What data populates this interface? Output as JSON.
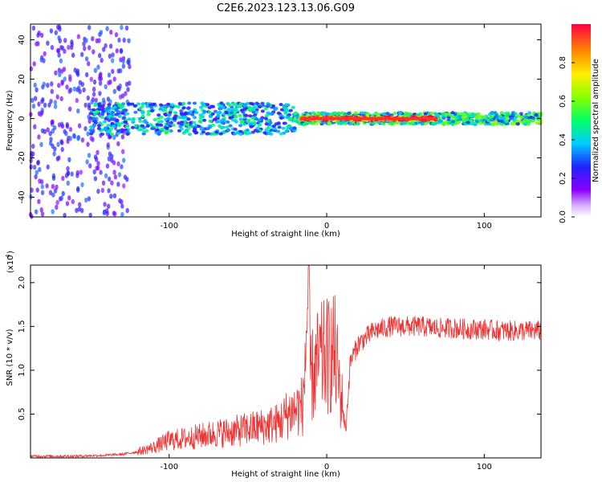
{
  "title": "C2E6.2023.123.13.06.G09",
  "chart_data": [
    {
      "type": "heatmap",
      "name": "spectrogram",
      "xlabel": "Height of straight line (km)",
      "ylabel": "Frequency (Hz)",
      "xlim": [
        -188,
        136
      ],
      "ylim": [
        -50,
        48
      ],
      "xticks": [
        -100,
        0,
        100
      ],
      "yticks": [
        -40,
        -20,
        0,
        20,
        40
      ],
      "xtick_labels": [
        "-100",
        "0",
        "100"
      ],
      "ytick_labels": [
        "-40",
        "-20",
        "0",
        "20",
        "40"
      ],
      "colorbar": {
        "label": "Normalized spectral amplitude",
        "range": [
          0,
          1
        ],
        "ticks": [
          0.0,
          0.2,
          0.4,
          0.6,
          0.8
        ],
        "tick_labels": [
          "0.0",
          "0.2",
          "0.4",
          "0.6",
          "0.8"
        ]
      },
      "bands": [
        {
          "x": [
            -188,
            -125
          ],
          "freq_center": 0,
          "freq_halfwidth": 50,
          "amplitude": 0.25,
          "description_level": "scattered"
        },
        {
          "x": [
            -150,
            -20
          ],
          "freq_center": 0,
          "freq_halfwidth": 8,
          "amplitude": 0.4
        },
        {
          "x": [
            -20,
            136
          ],
          "freq_center": 0,
          "freq_halfwidth": 3,
          "amplitude": 0.5
        },
        {
          "x": [
            -17,
            70
          ],
          "freq_center": 0,
          "freq_halfwidth": 1,
          "amplitude": 0.95
        }
      ]
    },
    {
      "type": "line",
      "name": "snr",
      "xlabel": "Height of straight line (km)",
      "ylabel": "SNR (10 * v/v)",
      "yscale_label": "(x10",
      "yscale_exp": "4",
      "xlim": [
        -188,
        136
      ],
      "ylim": [
        0,
        2.2
      ],
      "xticks": [
        -100,
        0,
        100
      ],
      "yticks": [
        0.5,
        1.0,
        1.5,
        2.0
      ],
      "xtick_labels": [
        "-100",
        "0",
        "100"
      ],
      "ytick_labels": [
        "0.5",
        "1.0",
        "1.5",
        "2.0"
      ],
      "series": [
        {
          "name": "SNR",
          "color": "#ee3333",
          "x": [
            -188,
            -160,
            -140,
            -130,
            -120,
            -110,
            -100,
            -90,
            -80,
            -70,
            -60,
            -50,
            -40,
            -30,
            -25,
            -20,
            -15,
            -12,
            -10,
            -5,
            0,
            5,
            10,
            12,
            15,
            20,
            30,
            40,
            50,
            60,
            70,
            80,
            90,
            100,
            110,
            120,
            136
          ],
          "y": [
            0.02,
            0.02,
            0.03,
            0.04,
            0.07,
            0.12,
            0.2,
            0.22,
            0.25,
            0.28,
            0.3,
            0.33,
            0.36,
            0.4,
            0.5,
            0.55,
            0.6,
            1.8,
            0.9,
            1.1,
            1.15,
            1.2,
            0.6,
            0.3,
            1.1,
            1.3,
            1.45,
            1.5,
            1.5,
            1.5,
            1.48,
            1.48,
            1.47,
            1.47,
            1.45,
            1.45,
            1.45
          ]
        }
      ]
    }
  ]
}
